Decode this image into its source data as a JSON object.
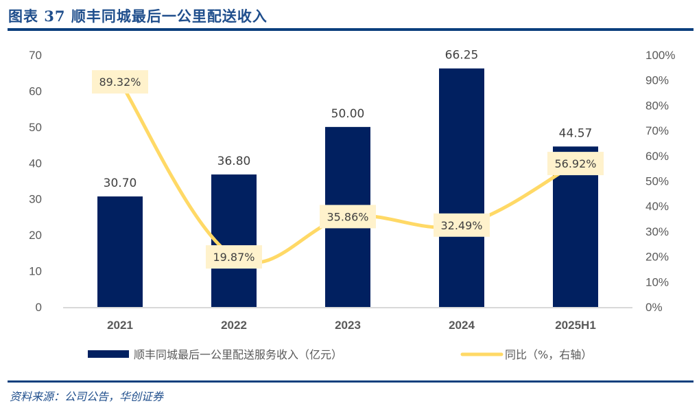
{
  "header": {
    "title": "图表 37  顺丰同城最后一公里配送收入"
  },
  "footer": {
    "source": "资料来源：公司公告，华创证券"
  },
  "colors": {
    "bar": "#012060",
    "line": "#ffd966",
    "label_bg": "#fff2cc",
    "rule": "#0b3f7d",
    "axis": "#d9d9d9"
  },
  "chart_data": {
    "type": "bar",
    "title": "顺丰同城最后一公里配送收入",
    "categories": [
      "2021",
      "2022",
      "2023",
      "2024",
      "2025H1"
    ],
    "series": [
      {
        "name": "顺丰同城最后一公里配送服务收入（亿元）",
        "type": "bar",
        "axis": "left",
        "values": [
          30.7,
          36.8,
          50.0,
          66.25,
          44.57
        ],
        "labels": [
          "30.70",
          "36.80",
          "50.00",
          "66.25",
          "44.57"
        ]
      },
      {
        "name": "同比（%，右轴）",
        "type": "line",
        "axis": "right",
        "values": [
          89.32,
          19.87,
          35.86,
          32.49,
          56.92
        ],
        "labels": [
          "89.32%",
          "19.87%",
          "35.86%",
          "32.49%",
          "56.92%"
        ]
      }
    ],
    "y_left": {
      "ylim": [
        0,
        70
      ],
      "ticks": [
        "0",
        "10",
        "20",
        "30",
        "40",
        "50",
        "60",
        "70"
      ]
    },
    "y_right": {
      "ylim": [
        0,
        100
      ],
      "ticks": [
        "0%",
        "10%",
        "20%",
        "30%",
        "40%",
        "50%",
        "60%",
        "70%",
        "80%",
        "90%",
        "100%"
      ]
    },
    "xlabel": "",
    "ylabel": "",
    "grid": false,
    "legend_position": "bottom"
  }
}
